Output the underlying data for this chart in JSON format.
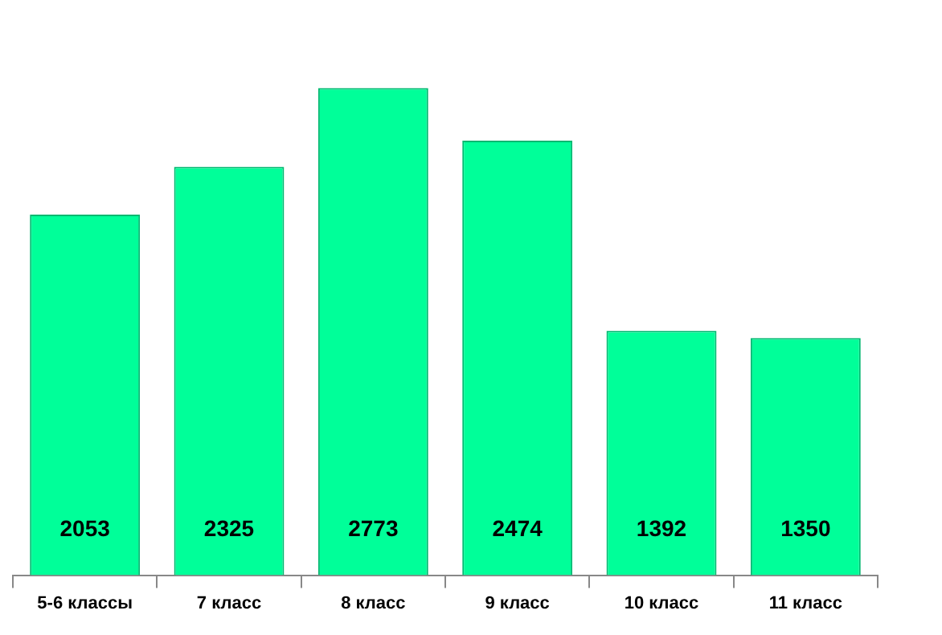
{
  "chart_data": {
    "type": "bar",
    "categories": [
      "5-6 классы",
      "7 класс",
      "8 класс",
      "9 класс",
      "10 класс",
      "11 класс"
    ],
    "values": [
      2053,
      2325,
      2773,
      2474,
      1392,
      1350
    ],
    "color": "#00ff99",
    "data_labels": true,
    "grid": false,
    "legend": false
  }
}
